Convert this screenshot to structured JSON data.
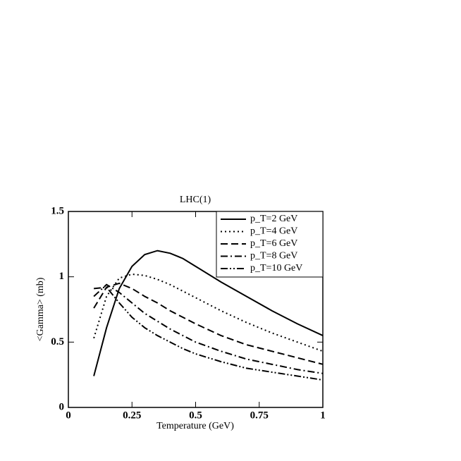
{
  "chart_data": {
    "type": "line",
    "title": "LHC(1)",
    "x_label": "Temperature (GeV)",
    "y_label": "<Gamma> (mb)",
    "x": [
      0.1,
      0.15,
      0.2,
      0.25,
      0.3,
      0.35,
      0.4,
      0.45,
      0.5,
      0.6,
      0.7,
      0.8,
      0.9,
      1.0
    ],
    "series": [
      {
        "name": "p_T=2 GeV",
        "color": "#000000",
        "dash": "solid",
        "values": [
          0.24,
          0.61,
          0.91,
          1.08,
          1.17,
          1.2,
          1.18,
          1.14,
          1.08,
          0.96,
          0.85,
          0.74,
          0.64,
          0.55
        ]
      },
      {
        "name": "p_T=4 GeV",
        "color": "#000000",
        "dash": "dotted",
        "values": [
          0.53,
          0.85,
          0.99,
          1.02,
          1.01,
          0.98,
          0.94,
          0.89,
          0.84,
          0.74,
          0.65,
          0.57,
          0.5,
          0.43
        ]
      },
      {
        "name": "p_T=6 GeV",
        "color": "#000000",
        "dash": "dashed",
        "values": [
          0.76,
          0.92,
          0.95,
          0.91,
          0.85,
          0.8,
          0.74,
          0.69,
          0.64,
          0.55,
          0.48,
          0.43,
          0.38,
          0.33
        ]
      },
      {
        "name": "p_T=8 GeV",
        "color": "#000000",
        "dash": "dash-dot",
        "values": [
          0.85,
          0.94,
          0.88,
          0.8,
          0.72,
          0.66,
          0.6,
          0.55,
          0.5,
          0.43,
          0.37,
          0.33,
          0.29,
          0.26
        ]
      },
      {
        "name": "p_T=10 GeV",
        "color": "#000000",
        "dash": "dash-dot-dot",
        "values": [
          0.91,
          0.92,
          0.8,
          0.69,
          0.61,
          0.55,
          0.5,
          0.45,
          0.41,
          0.35,
          0.3,
          0.27,
          0.24,
          0.21
        ]
      }
    ],
    "xlim": [
      0,
      1
    ],
    "ylim": [
      0,
      1.5
    ],
    "xticks": [
      0,
      0.25,
      0.5,
      0.75,
      1
    ],
    "yticks": [
      0,
      0.5,
      1,
      1.5
    ],
    "grid": false,
    "legend": "upper-right"
  }
}
